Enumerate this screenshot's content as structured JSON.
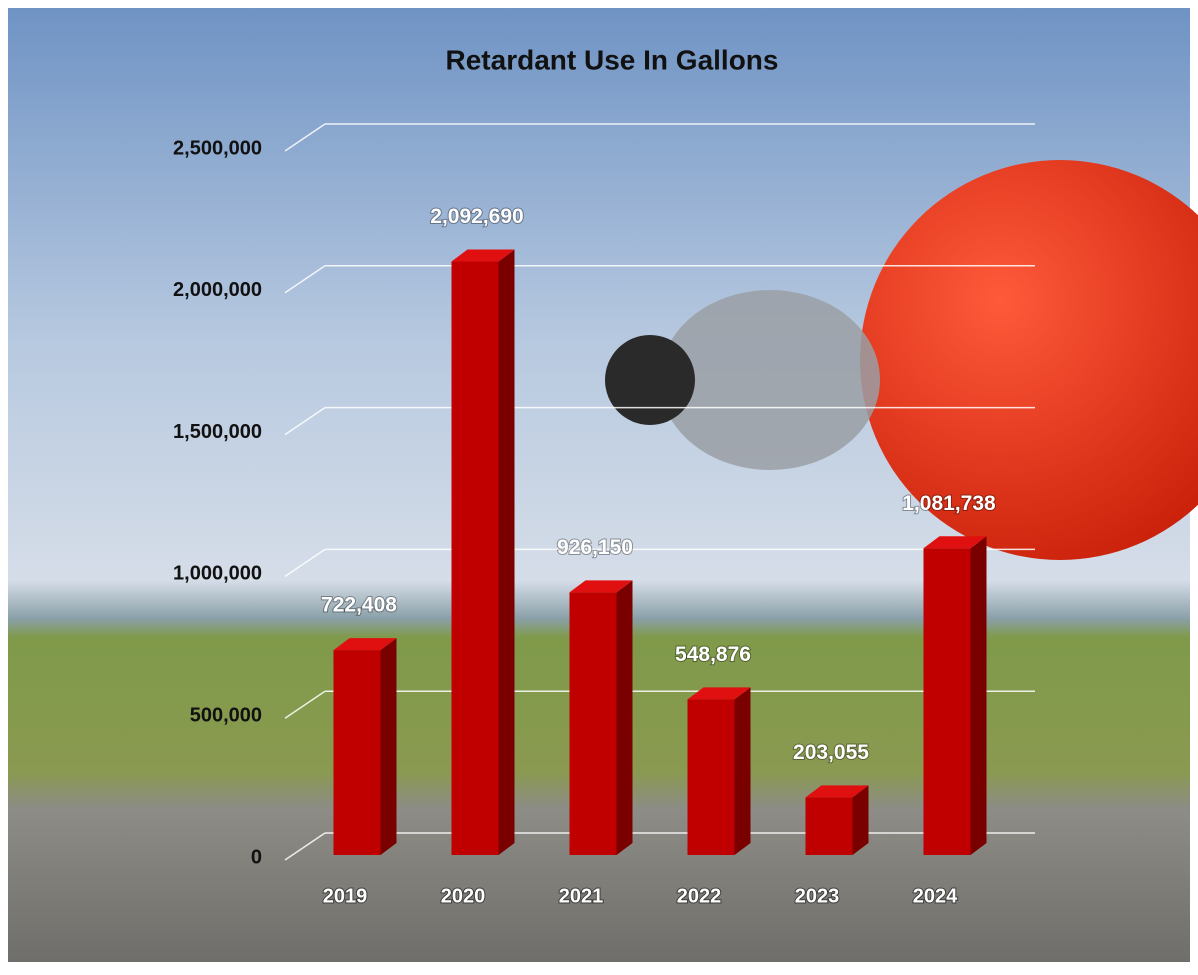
{
  "chart_data": {
    "type": "bar",
    "title": "Retardant Use In Gallons",
    "categories": [
      "2019",
      "2020",
      "2021",
      "2022",
      "2023",
      "2024"
    ],
    "values": [
      722408,
      2092690,
      926150,
      548876,
      203055,
      1081738
    ],
    "value_labels": [
      "722,408",
      "2,092,690",
      "926,150",
      "548,876",
      "203,055",
      "1,081,738"
    ],
    "color": "#c00000",
    "ylim": [
      0,
      2500000
    ],
    "yticks": [
      0,
      {
        "value": 500000,
        "label": "500,000"
      },
      {
        "value": 1000000,
        "label": "1,000,000"
      },
      {
        "value": 1500000,
        "label": "1,500,000"
      },
      {
        "value": 2000000,
        "label": "2,000,000"
      },
      {
        "value": 2500000,
        "label": "2,500,000"
      }
    ],
    "grid": true
  }
}
